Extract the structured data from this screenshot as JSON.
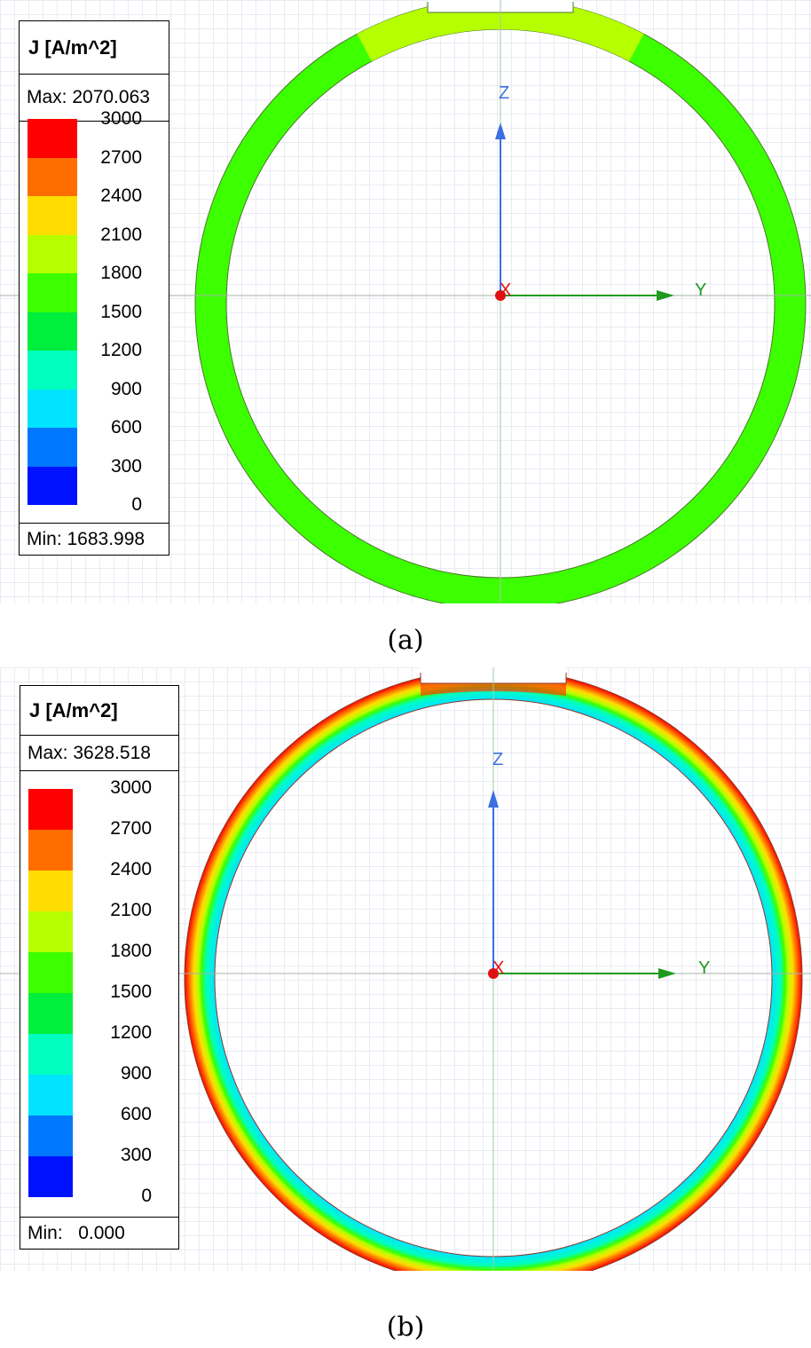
{
  "colorbar": {
    "levels": [
      3000,
      2700,
      2400,
      2100,
      1800,
      1500,
      1200,
      900,
      600,
      300,
      0
    ],
    "tick_labels": [
      "3000",
      "2700",
      "2400",
      "2100",
      "1800",
      "1500",
      "1200",
      "900",
      "600",
      "300",
      "0"
    ],
    "colors": [
      "#ff0000",
      "#ff6d00",
      "#ffdd00",
      "#b5ff00",
      "#3cff00",
      "#00ee3c",
      "#00ffbe",
      "#00e4ff",
      "#0077ff",
      "#0011ff"
    ]
  },
  "panel_a": {
    "legend_title": "J [A/m^2]",
    "max_label": "Max: 2070.063",
    "min_label": "Min: 1683.998",
    "axis_z": "Z",
    "axis_y": "Y",
    "axis_x": "X",
    "caption": "(a)",
    "ring_color": "#3cff00",
    "top_zone_color": "#b5ff00"
  },
  "panel_b": {
    "legend_title": "J [A/m^2]",
    "max_label": "Max: 3628.518",
    "min_label_prefix": "Min:",
    "min_label_value": "0.000",
    "axis_z": "Z",
    "axis_y": "Y",
    "axis_x": "X",
    "caption": "(b)",
    "gradient_colors": [
      "#ff0000",
      "#ff6d00",
      "#ffdd00",
      "#b5ff00",
      "#3cff00",
      "#00ffbe",
      "#00e4ff"
    ]
  }
}
